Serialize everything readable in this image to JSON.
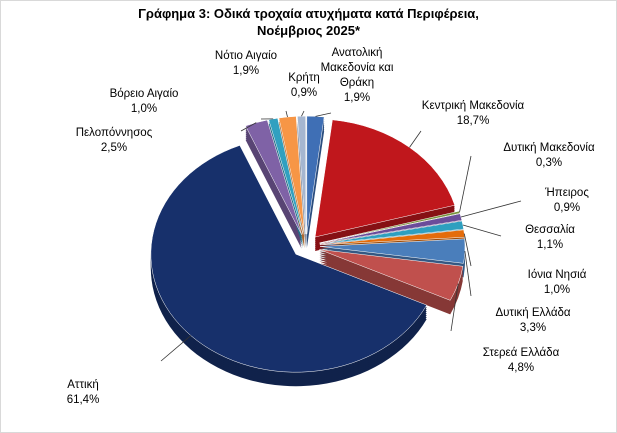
{
  "chart_data": {
    "type": "pie",
    "title": "Γράφημα 3: Οδικά τροχαία ατυχήματα κατά Περιφέρεια, Νοέμβριος 2025*",
    "categories": [
      "Ανατολική Μακεδονία και Θράκη",
      "Κεντρική Μακεδονία",
      "Δυτική Μακεδονία",
      "Ήπειρος",
      "Θεσσαλία",
      "Ιόνια Νησιά",
      "Δυτική Ελλάδα",
      "Στερεά Ελλάδα",
      "Αττική",
      "Πελοπόννησος",
      "Βόρειο Αιγαίο",
      "Νότιο Αιγαίο",
      "Κρήτη"
    ],
    "values": [
      1.9,
      18.7,
      0.3,
      0.9,
      1.1,
      1.0,
      3.3,
      4.8,
      61.4,
      2.5,
      1.0,
      1.9,
      0.9
    ],
    "value_labels": [
      "1,9%",
      "18,7%",
      "0,3%",
      "0,9%",
      "1,1%",
      "1,0%",
      "3,3%",
      "4,8%",
      "61,4%",
      "2,5%",
      "1,0%",
      "1,9%",
      "0,9%"
    ],
    "colors": [
      "#3f6fb5",
      "#c0171c",
      "#77933c",
      "#6b4c9a",
      "#2e9fbf",
      "#e46c0a",
      "#4a7ebb",
      "#c0504d",
      "#17306b",
      "#7f62a6",
      "#31a0c0",
      "#f79646",
      "#a5b6d0"
    ]
  }
}
